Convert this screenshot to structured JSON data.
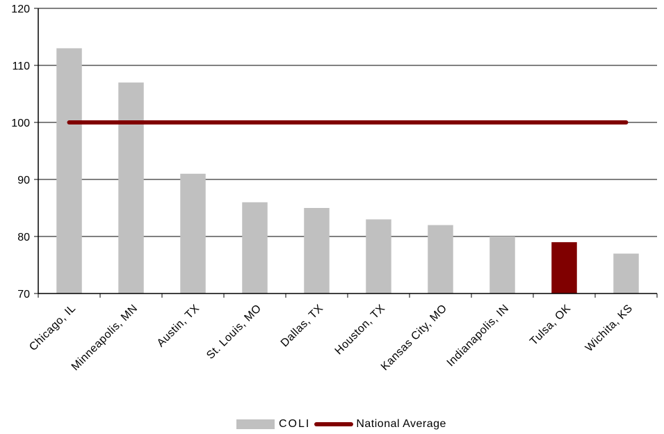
{
  "chart_data": {
    "type": "bar",
    "categories": [
      "Chicago, IL",
      "Minneapolis, MN",
      "Austin, TX",
      "St. Louis, MO",
      "Dallas, TX",
      "Houston, TX",
      "Kansas City, MO",
      "Indianapolis, IN",
      "Tulsa, OK",
      "Wichita, KS"
    ],
    "series": [
      {
        "name": "COLI",
        "type": "bar",
        "values": [
          113,
          107,
          91,
          86,
          85,
          83,
          82,
          80,
          79,
          77
        ],
        "color": "#c0c0c0",
        "highlight_index": 8,
        "highlight_color": "#800000"
      },
      {
        "name": "National Average",
        "type": "line",
        "values": [
          100,
          100,
          100,
          100,
          100,
          100,
          100,
          100,
          100,
          100
        ],
        "color": "#800000"
      }
    ],
    "yticks": [
      "70",
      "80",
      "90",
      "100",
      "110",
      "120"
    ],
    "ylim": [
      70,
      120
    ],
    "grid": true,
    "legend_position": "bottom"
  },
  "legend": {
    "bar_label": "COLI",
    "line_label": "National Average"
  }
}
